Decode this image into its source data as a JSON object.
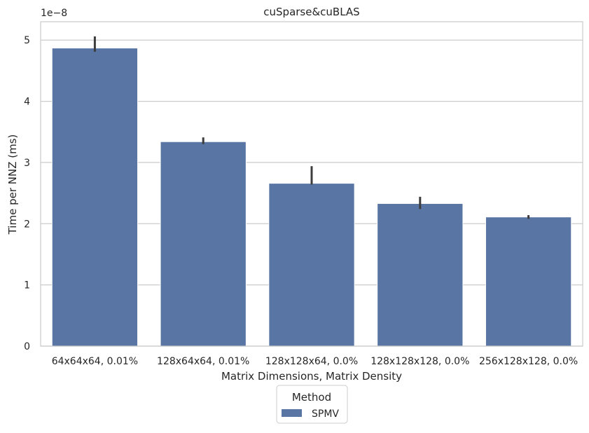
{
  "chart_data": {
    "type": "bar",
    "title": "cuSparse&cuBLAS",
    "xlabel": "Matrix Dimensions, Matrix Density",
    "ylabel": "Time per NNZ (ms)",
    "y_offset_label": "1e−8",
    "y_scale": 1e-08,
    "ylim": [
      0,
      5.3
    ],
    "yticks": [
      0,
      1,
      2,
      3,
      4,
      5
    ],
    "grid": true,
    "categories": [
      "64x64x64, 0.01%",
      "128x64x64, 0.01%",
      "128x128x64, 0.0%",
      "128x128x128, 0.0%",
      "256x128x128, 0.0%"
    ],
    "series": [
      {
        "name": "SPMV",
        "color": "#5875a4",
        "values": [
          4.87,
          3.34,
          2.66,
          2.33,
          2.11
        ],
        "error_low": [
          4.81,
          3.3,
          2.64,
          2.24,
          2.08
        ],
        "error_high": [
          5.06,
          3.41,
          2.94,
          2.44,
          2.14
        ]
      }
    ],
    "legend": {
      "title": "Method",
      "placement": "bottom-center"
    }
  }
}
